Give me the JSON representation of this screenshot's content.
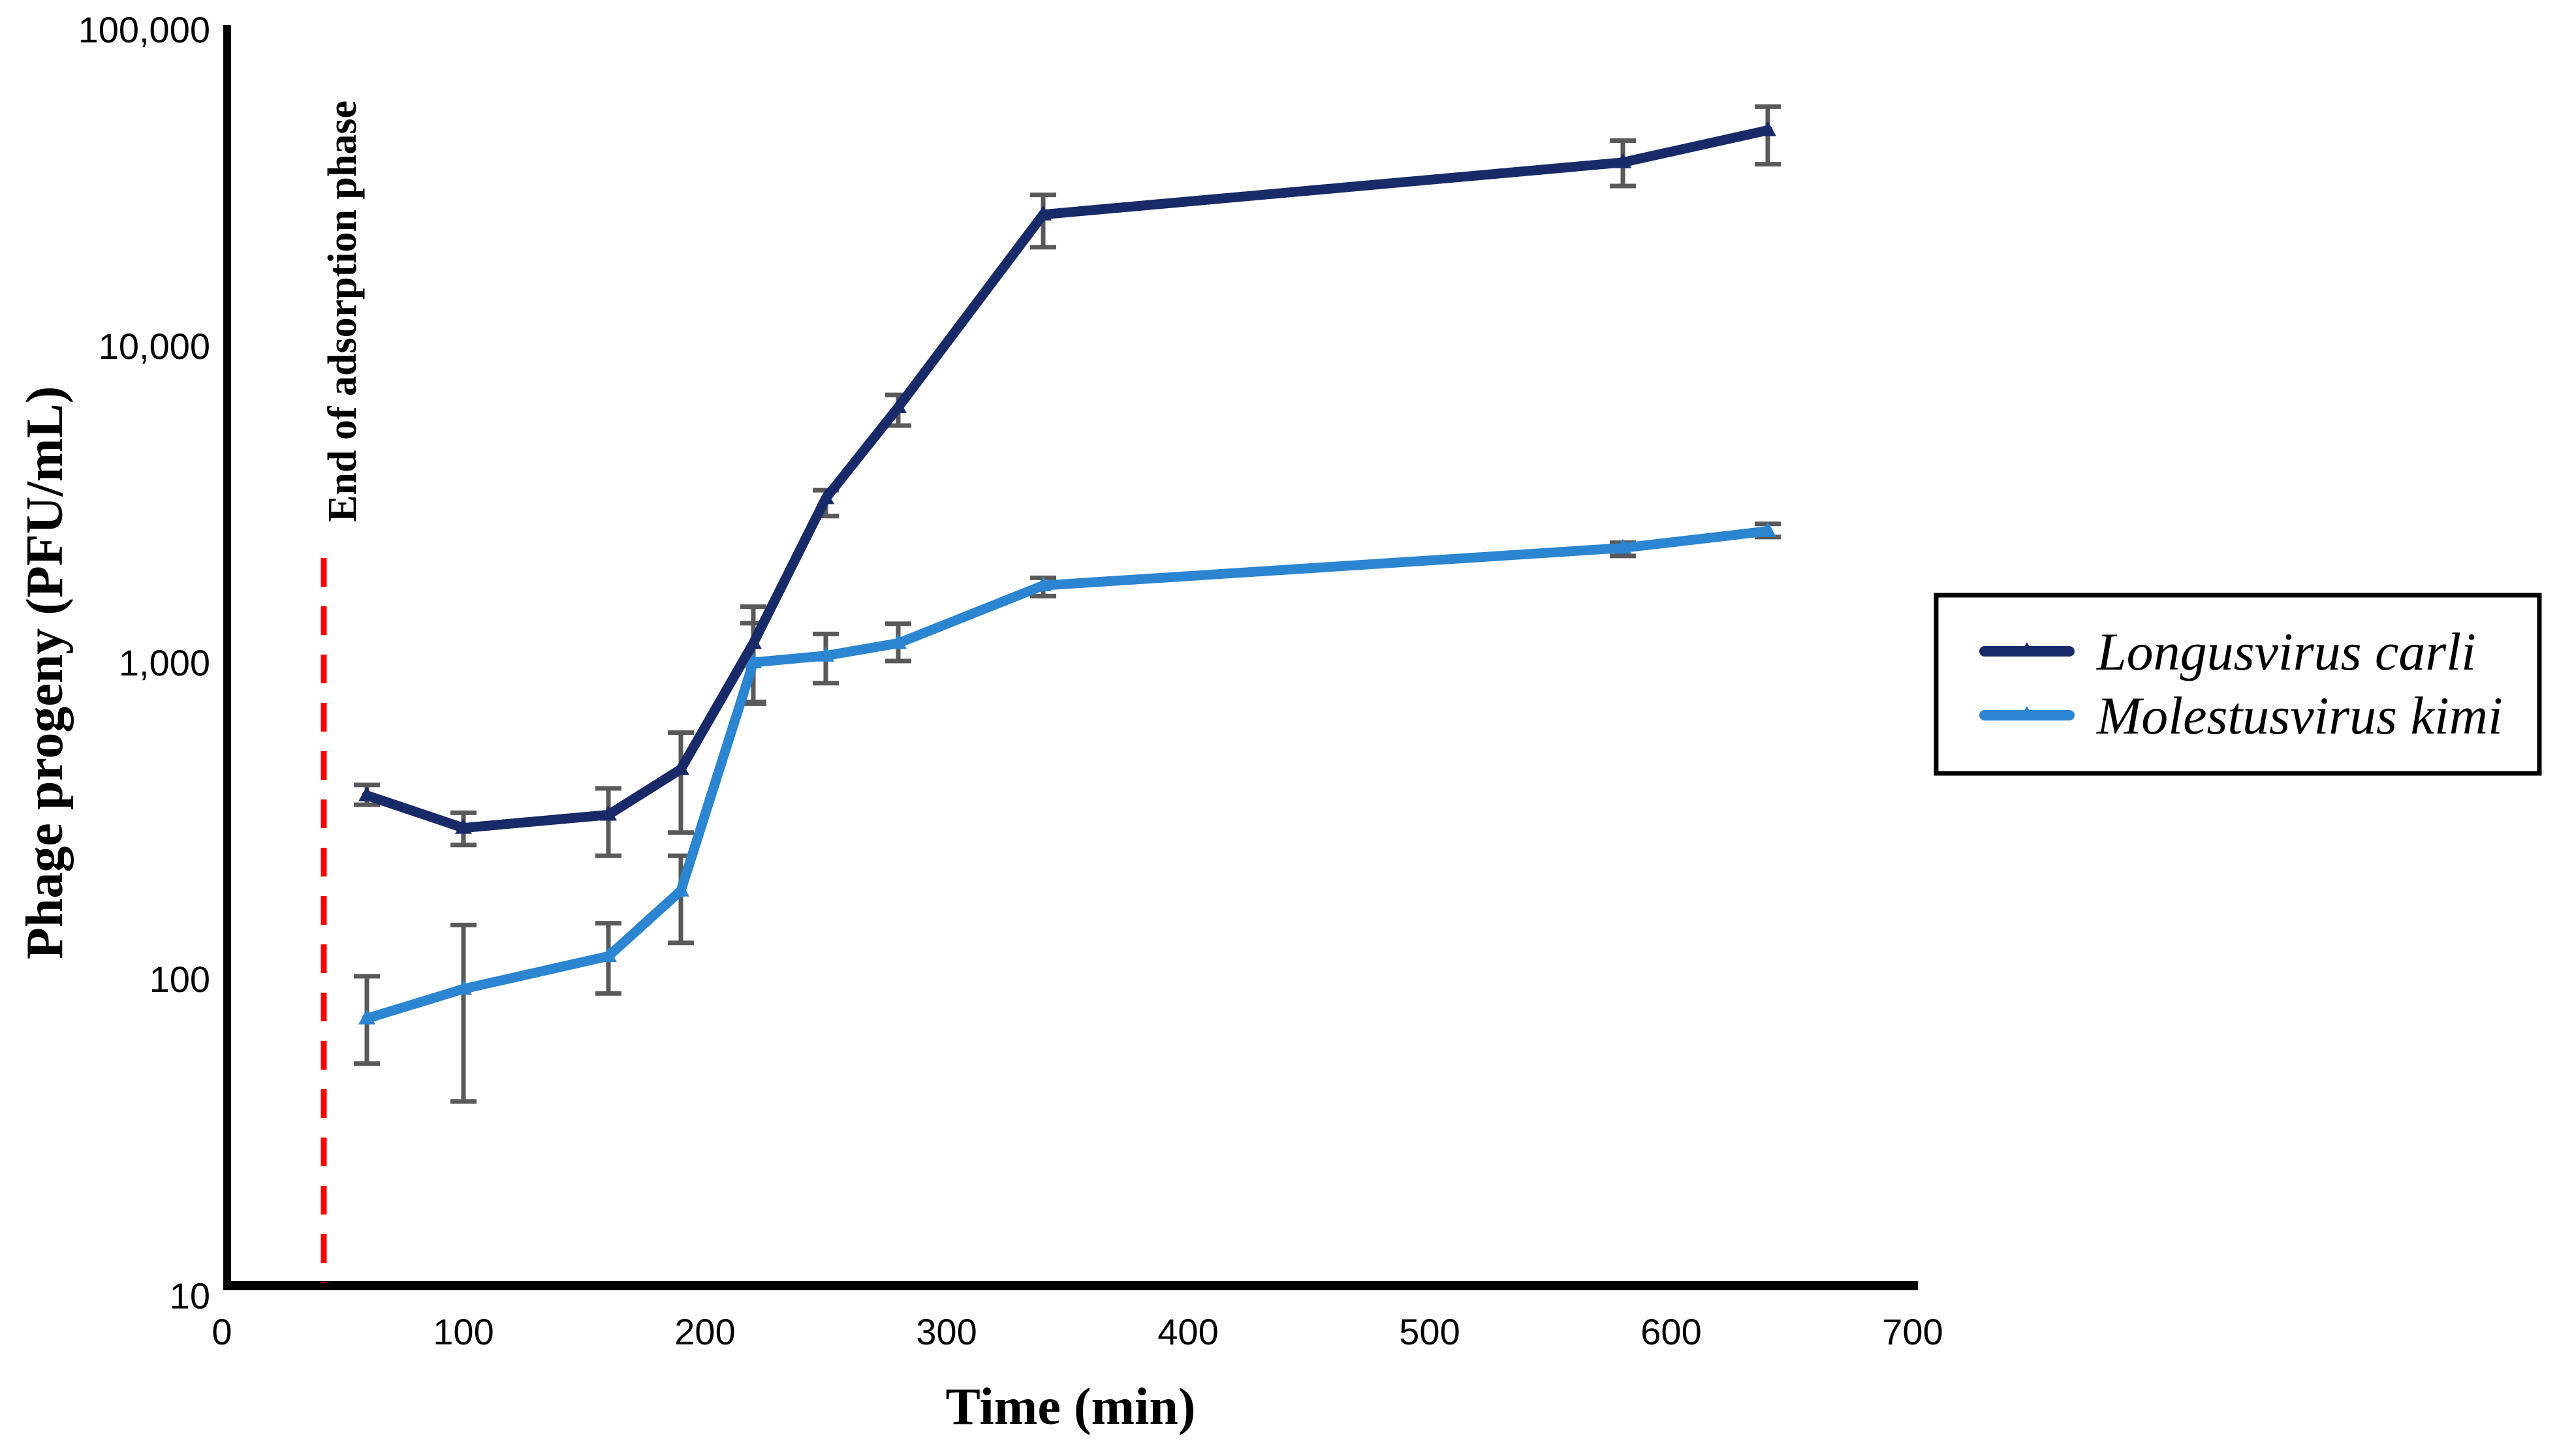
{
  "page": {
    "background": "#ffffff"
  },
  "axes": {
    "y_title": "Phage progeny (PFU/mL)",
    "x_title": "Time (min)"
  },
  "annotation": {
    "text": "End of adsorption phase"
  },
  "legend": {
    "items": [
      {
        "label": "Longusvirus carli",
        "color": "#192a68",
        "marker": "triangle"
      },
      {
        "label": "Molestusvirus kimi",
        "color": "#2b85d0",
        "marker": "triangle"
      }
    ]
  },
  "chart_data": {
    "type": "line",
    "title": "",
    "xlabel": "Time (min)",
    "ylabel": "Phage progeny (PFU/mL)",
    "y_scale": "log",
    "xlim": [
      0,
      700
    ],
    "ylim": [
      10,
      100000
    ],
    "grid": false,
    "legend_position": "right",
    "error_bar_color": "#595959",
    "axis_color": "#000000",
    "x": [
      60,
      100,
      160,
      190,
      220,
      250,
      280,
      340,
      580,
      640
    ],
    "series": [
      {
        "name": "Longusvirus carli",
        "color": "#192a68",
        "values": [
          380,
          300,
          330,
          460,
          1150,
          3300,
          6400,
          26000,
          38000,
          48000
        ],
        "err_low": [
          355,
          265,
          245,
          290,
          740,
          2900,
          5600,
          20500,
          32000,
          37500
        ],
        "err_high": [
          410,
          335,
          400,
          600,
          1500,
          3500,
          7000,
          30000,
          44500,
          57000
        ]
      },
      {
        "name": "Molestusvirus kimi",
        "color": "#2b85d0",
        "values": [
          75,
          93,
          118,
          190,
          1000,
          1050,
          1150,
          1750,
          2300,
          2600
        ],
        "err_low": [
          54,
          41,
          90,
          130,
          750,
          860,
          1010,
          1620,
          2170,
          2490
        ],
        "err_high": [
          102,
          148,
          150,
          245,
          1330,
          1230,
          1325,
          1850,
          2390,
          2740
        ]
      }
    ],
    "x_ticks": {
      "values": [
        0,
        100,
        200,
        300,
        400,
        500,
        600,
        700
      ],
      "labels": [
        "0",
        "100",
        "200",
        "300",
        "400",
        "500",
        "600",
        "700"
      ]
    },
    "y_ticks": {
      "values": [
        10,
        100,
        1000,
        10000,
        100000
      ],
      "labels": [
        "10",
        "100",
        "1,000",
        "10,000",
        "100,000"
      ]
    },
    "reference_line": {
      "x": 40,
      "style": "dashed",
      "color": "#ff0000",
      "label": "End of adsorption phase"
    }
  }
}
